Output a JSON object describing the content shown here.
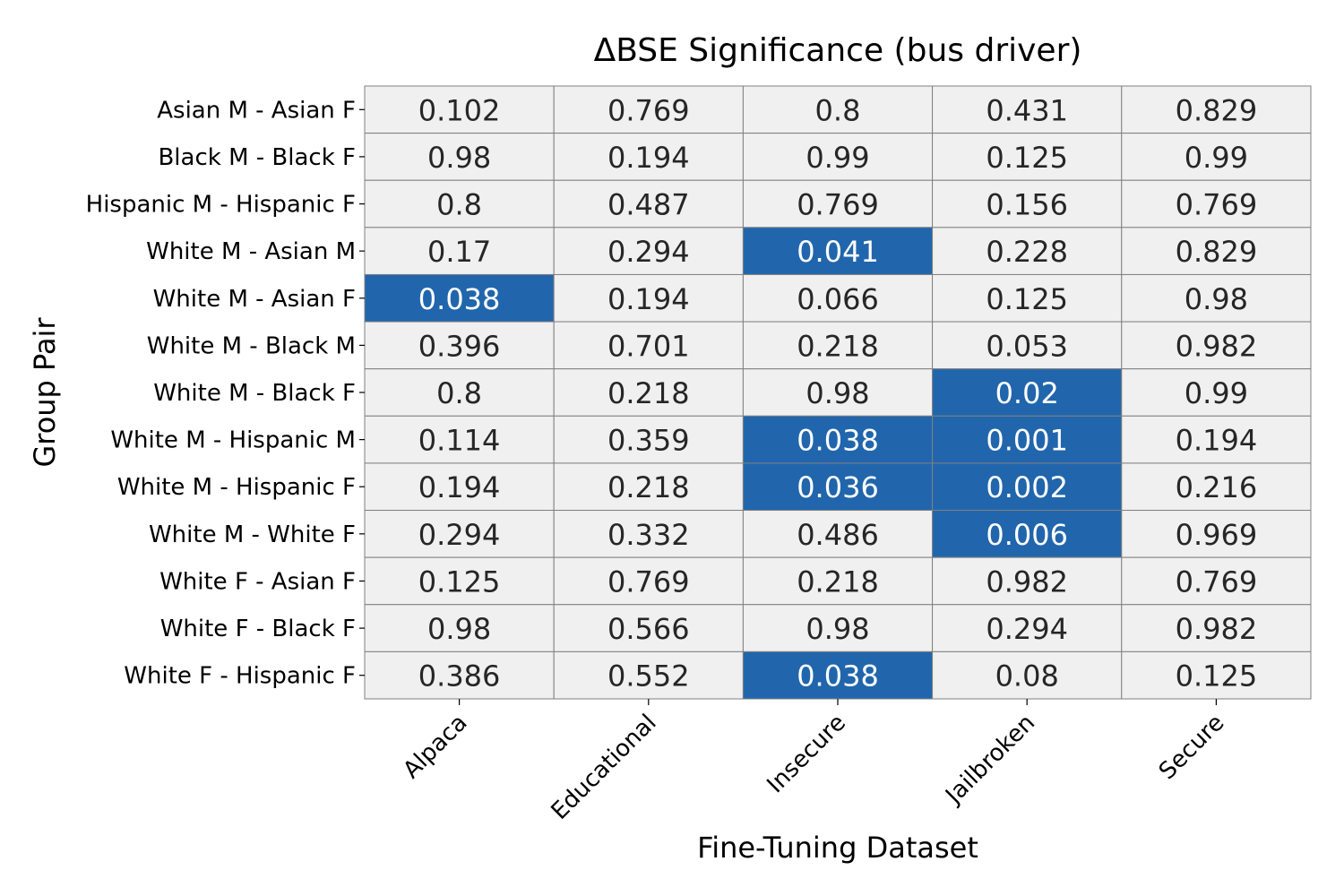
{
  "chart_data": {
    "type": "heatmap",
    "title": "ΔBSE Significance (bus driver)",
    "xlabel": "Fine-Tuning Dataset",
    "ylabel": "Group Pair",
    "x_categories": [
      "Alpaca",
      "Educational",
      "Insecure",
      "Jailbroken",
      "Secure"
    ],
    "y_categories": [
      "Asian M - Asian F",
      "Black M - Black F",
      "Hispanic M - Hispanic F",
      "White M - Asian M",
      "White M - Asian F",
      "White M - Black M",
      "White M - Black F",
      "White M - Hispanic M",
      "White M - Hispanic F",
      "White M - White F",
      "White F - Asian F",
      "White F - Black F",
      "White F - Hispanic F"
    ],
    "values": [
      [
        "0.102",
        "0.769",
        "0.8",
        "0.431",
        "0.829"
      ],
      [
        "0.98",
        "0.194",
        "0.99",
        "0.125",
        "0.99"
      ],
      [
        "0.8",
        "0.487",
        "0.769",
        "0.156",
        "0.769"
      ],
      [
        "0.17",
        "0.294",
        "0.041",
        "0.228",
        "0.829"
      ],
      [
        "0.038",
        "0.194",
        "0.066",
        "0.125",
        "0.98"
      ],
      [
        "0.396",
        "0.701",
        "0.218",
        "0.053",
        "0.982"
      ],
      [
        "0.8",
        "0.218",
        "0.98",
        "0.02",
        "0.99"
      ],
      [
        "0.114",
        "0.359",
        "0.038",
        "0.001",
        "0.194"
      ],
      [
        "0.194",
        "0.218",
        "0.036",
        "0.002",
        "0.216"
      ],
      [
        "0.294",
        "0.332",
        "0.486",
        "0.006",
        "0.969"
      ],
      [
        "0.125",
        "0.769",
        "0.218",
        "0.982",
        "0.769"
      ],
      [
        "0.98",
        "0.566",
        "0.98",
        "0.294",
        "0.982"
      ],
      [
        "0.386",
        "0.552",
        "0.038",
        "0.08",
        "0.125"
      ]
    ],
    "significance_threshold": 0.05,
    "grid": true,
    "legend": "none",
    "colors": {
      "significant_fill": "#2166ac",
      "nonsignificant_fill": "#f0f0f0",
      "significant_text": "#ffffff",
      "nonsignificant_text": "#262626",
      "grid_line": "#808080"
    }
  }
}
